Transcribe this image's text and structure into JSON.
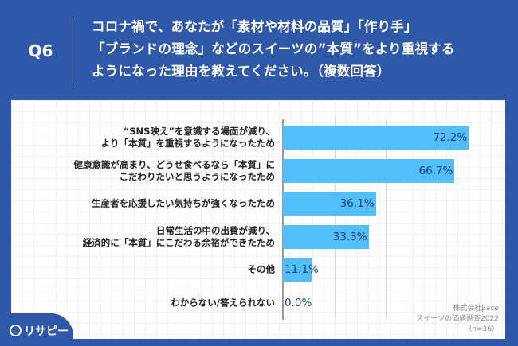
{
  "header": {
    "question_no": "Q6",
    "title_lines": [
      "コロナ禍で、あなたが「素材や材料の品質」「作り手」",
      "「ブランドの理念」などのスイーツの”本質”をより重視する",
      "ようになった理由を教えてください。（複数回答）"
    ]
  },
  "logo": {
    "text": "リサピー"
  },
  "source_note": [
    "株式会社βace",
    "スイーツの価値調査2022",
    "（n=36）"
  ],
  "colors": {
    "background": "#2f58a8",
    "bar": "#52befa",
    "value_text": "#1d3f72"
  },
  "chart_data": {
    "type": "bar",
    "orientation": "horizontal",
    "categories": [
      "“SNS映え”を意識する場面が減り、\nより「本質」を重視するようになったため",
      "健康意識が高まり、どうせ食べるなら「本質」に\nこだわりたいと思うようになったため",
      "生産者を応援したい気持ちが強くなったため",
      "日常生活の中の出費が減り、\n経済的に「本質」にこだわる余裕ができたため",
      "その他",
      "わからない/答えられない"
    ],
    "values": [
      72.2,
      66.7,
      36.1,
      33.3,
      11.1,
      0.0
    ],
    "value_labels": [
      "72.2%",
      "66.7%",
      "36.1%",
      "33.3%",
      "11.1%",
      "0.0%"
    ],
    "unit": "%",
    "xlim": [
      0,
      100
    ],
    "gridlines": [
      20,
      40,
      60,
      80
    ],
    "grid": true
  }
}
